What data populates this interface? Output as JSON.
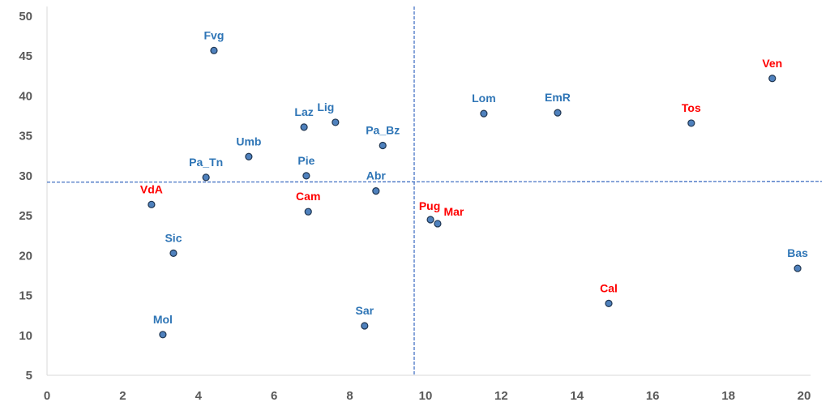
{
  "chart_data": {
    "type": "scatter",
    "title": "",
    "xlabel": "",
    "ylabel": "",
    "xlim": [
      0,
      20
    ],
    "ylim": [
      5,
      50
    ],
    "xticks": [
      "0",
      "2",
      "4",
      "6",
      "8",
      "10",
      "12",
      "14",
      "16",
      "18",
      "20"
    ],
    "yticks": [
      "5",
      "10",
      "15",
      "20",
      "25",
      "30",
      "35",
      "40",
      "45",
      "50"
    ],
    "grid": false,
    "reference_lines": {
      "x": 9.7,
      "y": 29.2
    },
    "colors": {
      "blue": "#2E75B6",
      "red": "#FF0000",
      "marker": "#4F81BD",
      "marker_edge": "#1F3550",
      "refline": "#4472C4"
    },
    "points": [
      {
        "label": "Fvg",
        "x": 4.41,
        "y": 45.7,
        "group": "blue"
      },
      {
        "label": "Ven",
        "x": 19.16,
        "y": 42.2,
        "group": "red"
      },
      {
        "label": "Lom",
        "x": 11.54,
        "y": 37.8,
        "group": "blue"
      },
      {
        "label": "EmR",
        "x": 13.49,
        "y": 37.9,
        "group": "blue"
      },
      {
        "label": "Tos",
        "x": 17.02,
        "y": 36.6,
        "group": "red"
      },
      {
        "label": "Laz",
        "x": 6.79,
        "y": 36.1,
        "group": "blue"
      },
      {
        "label": "Lig",
        "x": 7.62,
        "y": 36.7,
        "group": "blue"
      },
      {
        "label": "Pa_Bz",
        "x": 8.87,
        "y": 33.8,
        "group": "blue"
      },
      {
        "label": "Umb",
        "x": 5.33,
        "y": 32.4,
        "group": "blue"
      },
      {
        "label": "Pa_Tn",
        "x": 4.2,
        "y": 29.8,
        "group": "blue"
      },
      {
        "label": "Pie",
        "x": 6.85,
        "y": 30.0,
        "group": "blue"
      },
      {
        "label": "Abr",
        "x": 8.69,
        "y": 28.1,
        "group": "blue"
      },
      {
        "label": "VdA",
        "x": 2.76,
        "y": 26.4,
        "group": "red"
      },
      {
        "label": "Cam",
        "x": 6.9,
        "y": 25.5,
        "group": "red"
      },
      {
        "label": "Pug",
        "x": 10.13,
        "y": 24.5,
        "group": "red"
      },
      {
        "label": "Mar",
        "x": 10.32,
        "y": 24.0,
        "group": "red"
      },
      {
        "label": "Sic",
        "x": 3.34,
        "y": 20.3,
        "group": "blue"
      },
      {
        "label": "Bas",
        "x": 19.83,
        "y": 18.4,
        "group": "blue"
      },
      {
        "label": "Cal",
        "x": 14.84,
        "y": 14.0,
        "group": "red"
      },
      {
        "label": "Mol",
        "x": 3.06,
        "y": 10.1,
        "group": "blue"
      },
      {
        "label": "Sar",
        "x": 8.39,
        "y": 11.2,
        "group": "blue"
      }
    ]
  }
}
